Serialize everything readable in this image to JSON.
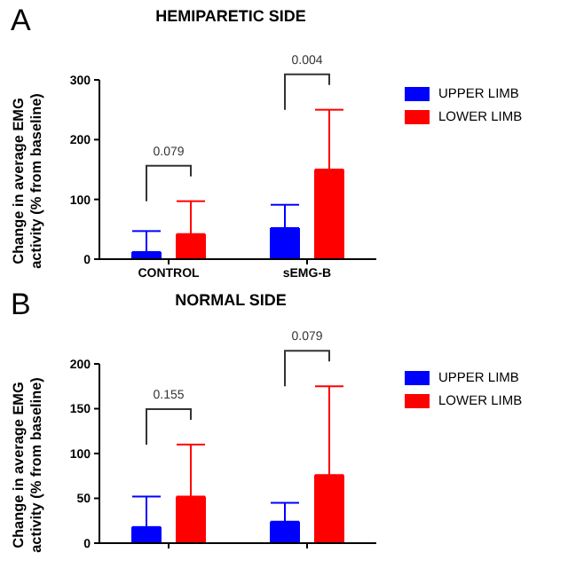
{
  "chart_data": [
    {
      "type": "bar",
      "title": "HEMIPARETIC SIDE",
      "ylabel": "Change in average EMG activity (% from baseline)",
      "categories": [
        "CONTROL",
        "sEMG-B"
      ],
      "series": [
        {
          "name": "UPPER LIMB",
          "color": "#0000ff",
          "values": [
            12,
            52
          ],
          "errors": [
            [
              12,
              47
            ],
            [
              52,
              91
            ]
          ]
        },
        {
          "name": "LOWER LIMB",
          "color": "#ff0000",
          "values": [
            42,
            150
          ],
          "errors": [
            [
              42,
              97
            ],
            [
              150,
              250
            ]
          ]
        }
      ],
      "ylim": [
        0,
        300
      ],
      "yticks": [
        0,
        100,
        200,
        300
      ],
      "grid": false,
      "legend": "right",
      "annotations": [
        "A",
        "0.079",
        "0.004"
      ]
    },
    {
      "type": "bar",
      "title": "NORMAL SIDE",
      "ylabel": "Change in average EMG activity (% from baseline)",
      "categories": [
        null,
        null
      ],
      "series": [
        {
          "name": "UPPER LIMB",
          "color": "#0000ff",
          "values": [
            18,
            24
          ],
          "errors": [
            [
              18,
              52
            ],
            [
              24,
              45
            ]
          ]
        },
        {
          "name": "LOWER LIMB",
          "color": "#ff0000",
          "values": [
            52,
            76
          ],
          "errors": [
            [
              52,
              110
            ],
            [
              76,
              175
            ]
          ]
        }
      ],
      "ylim": [
        0,
        200
      ],
      "yticks": [
        0,
        50,
        100,
        150,
        200
      ],
      "grid": false,
      "legend": "right",
      "annotations": [
        "B",
        "0.155",
        "0.079"
      ]
    }
  ]
}
